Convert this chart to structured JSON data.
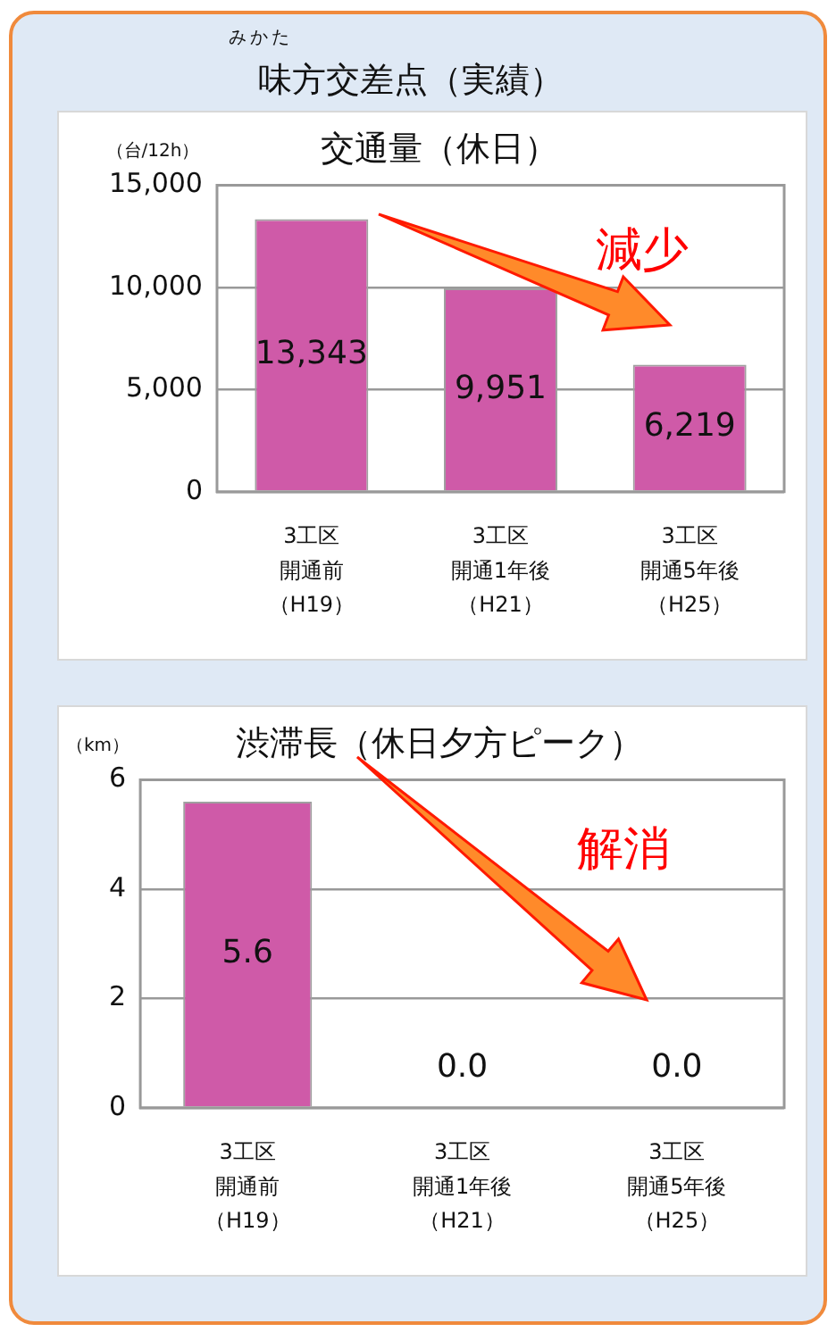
{
  "chart_data": [
    {
      "type": "other",
      "title": "味方交差点（実績）",
      "annotations": [
        "みかた"
      ]
    },
    {
      "type": "bar",
      "title": "交通量（休日）",
      "ylabel": "（台/12h）",
      "categories": [
        "3工区開通前（H19）",
        "3工区開通1年後（H21）",
        "3工区開通5年後（H25）"
      ],
      "values": [
        13343,
        9951,
        6219
      ],
      "value_labels": [
        "13,343",
        "9,951",
        "6,219"
      ],
      "color": "#cf5aa8",
      "ylim": [
        0,
        15000
      ],
      "yticks": [
        0,
        {
          "value": 5000,
          "label": "5,000"
        },
        {
          "value": 10000,
          "label": "10,000"
        },
        {
          "value": 15000,
          "label": "15,000"
        }
      ],
      "grid": "y",
      "annotations": [
        "減少"
      ]
    },
    {
      "type": "bar",
      "title": "渋滞長（休日夕方ピーク）",
      "ylabel": "（km）",
      "categories": [
        "3工区開通前（H19）",
        "3工区開通1年後（H21）",
        "3工区開通5年後（H25）"
      ],
      "values": [
        5.6,
        0,
        0
      ],
      "value_labels": [
        "5.6",
        "0.0",
        "0.0"
      ],
      "color": "#cf5aa8",
      "ylim": [
        0,
        6
      ],
      "yticks": [
        0,
        2,
        4,
        6
      ],
      "grid": "y",
      "annotations": [
        "解消"
      ]
    }
  ]
}
